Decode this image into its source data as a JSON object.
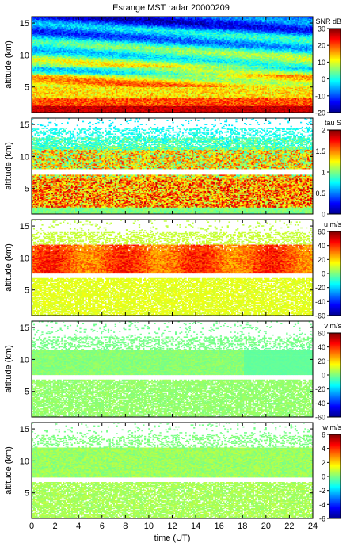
{
  "title": "Esrange MST radar 20000209",
  "chart_data": [
    {
      "type": "heatmap",
      "quantity": "SNR",
      "colorbar_label": "SNR dB",
      "ylabel": "altitude (km)",
      "ylim": [
        1,
        16
      ],
      "yticks": [
        5,
        10,
        15
      ],
      "xlim": [
        0,
        24
      ],
      "clim": [
        -20,
        30
      ],
      "cticks": [
        -20,
        -10,
        0,
        10,
        20,
        30
      ],
      "pattern": "snr"
    },
    {
      "type": "heatmap",
      "quantity": "tau",
      "colorbar_label": "tau S",
      "ylabel": "altitude (km)",
      "ylim": [
        1,
        16
      ],
      "yticks": [
        5,
        10,
        15
      ],
      "xlim": [
        0,
        24
      ],
      "clim": [
        0,
        2
      ],
      "cticks": [
        0,
        0.5,
        1,
        1.5,
        2
      ],
      "pattern": "tau"
    },
    {
      "type": "heatmap",
      "quantity": "u",
      "colorbar_label": "u m/s",
      "ylabel": "altitude (km)",
      "ylim": [
        1,
        16
      ],
      "yticks": [
        5,
        10,
        15
      ],
      "xlim": [
        0,
        24
      ],
      "clim": [
        -60,
        60
      ],
      "cticks": [
        -60,
        -40,
        -20,
        0,
        20,
        40,
        60
      ],
      "pattern": "u"
    },
    {
      "type": "heatmap",
      "quantity": "v",
      "colorbar_label": "v m/s",
      "ylabel": "altitude (km)",
      "ylim": [
        1,
        16
      ],
      "yticks": [
        5,
        10,
        15
      ],
      "xlim": [
        0,
        24
      ],
      "clim": [
        -60,
        60
      ],
      "cticks": [
        -60,
        -40,
        -20,
        0,
        20,
        40,
        60
      ],
      "pattern": "v"
    },
    {
      "type": "heatmap",
      "quantity": "w",
      "colorbar_label": "w m/s",
      "ylabel": "altitude (km)",
      "xlabel": "time (UT)",
      "ylim": [
        1,
        16
      ],
      "yticks": [
        5,
        10,
        15
      ],
      "xlim": [
        0,
        24
      ],
      "xticks": [
        0,
        2,
        4,
        6,
        8,
        10,
        12,
        14,
        16,
        18,
        20,
        22,
        24
      ],
      "clim": [
        -6,
        6
      ],
      "cticks": [
        -6,
        -4,
        -2,
        0,
        2,
        4,
        6
      ],
      "pattern": "w"
    }
  ]
}
